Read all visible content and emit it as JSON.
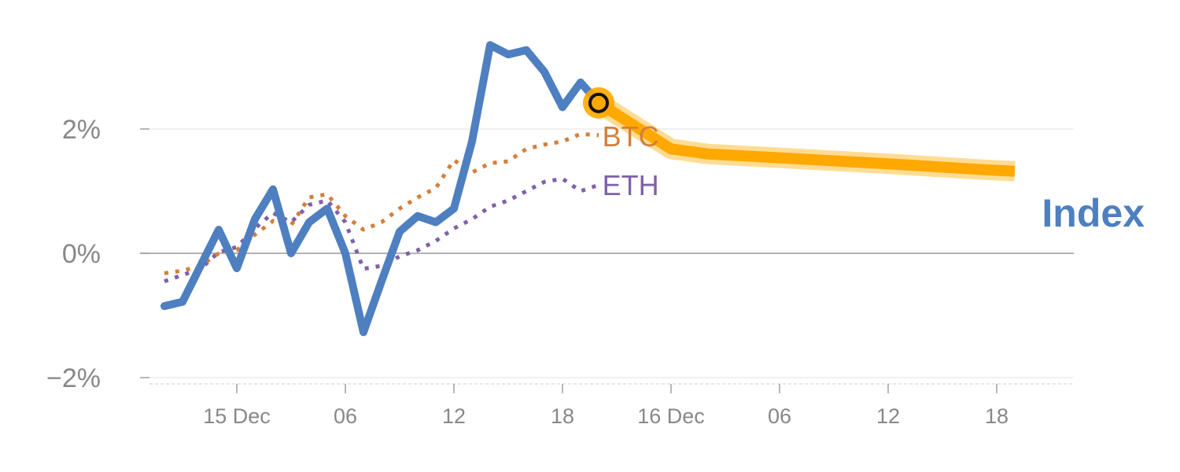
{
  "chart_data": {
    "type": "line",
    "title": "",
    "xlabel": "",
    "ylabel": "",
    "ylim": [
      -2,
      4
    ],
    "y_ticks": [
      {
        "value": -2,
        "label": "−2%"
      },
      {
        "value": 0,
        "label": "0%"
      },
      {
        "value": 2,
        "label": "2%"
      }
    ],
    "x_ticks": [
      {
        "x": 4,
        "label": "15 Dec"
      },
      {
        "x": 10,
        "label": "06"
      },
      {
        "x": 16,
        "label": "12"
      },
      {
        "x": 22,
        "label": "18"
      },
      {
        "x": 28,
        "label": "16 Dec"
      },
      {
        "x": 34,
        "label": "06"
      },
      {
        "x": 40,
        "label": "12"
      },
      {
        "x": 46,
        "label": "18"
      }
    ],
    "grid": true,
    "zero_line": true,
    "colors": {
      "index": "#4e7fc0",
      "btc": "#d47f3a",
      "eth": "#8060a8",
      "forecast": "#ffa800",
      "forecast_halo": "#ffd070",
      "grid": "#e6e6e6",
      "zero": "#999999"
    },
    "series": [
      {
        "name": "Index",
        "style": "solid",
        "x": [
          0,
          1,
          2,
          3,
          4,
          5,
          6,
          7,
          8,
          9,
          10,
          11,
          12,
          13,
          14,
          15,
          16,
          17,
          18,
          19,
          20,
          21,
          22,
          23,
          24
        ],
        "values": [
          -0.85,
          -0.78,
          -0.2,
          0.38,
          -0.24,
          0.55,
          1.03,
          0.0,
          0.5,
          0.72,
          0.0,
          -1.27,
          -0.45,
          0.35,
          0.6,
          0.5,
          0.72,
          1.8,
          3.35,
          3.2,
          3.27,
          2.92,
          2.35,
          2.75,
          2.42
        ]
      },
      {
        "name": "BTC",
        "style": "dotted",
        "x": [
          0,
          1,
          2,
          3,
          4,
          5,
          6,
          7,
          8,
          9,
          10,
          11,
          12,
          13,
          14,
          15,
          16,
          17,
          18,
          19,
          20,
          21,
          22,
          23,
          24
        ],
        "values": [
          -0.32,
          -0.28,
          -0.2,
          0.0,
          0.05,
          0.3,
          0.52,
          0.45,
          0.9,
          0.95,
          0.6,
          0.38,
          0.5,
          0.72,
          0.9,
          1.05,
          1.5,
          1.3,
          1.45,
          1.48,
          1.68,
          1.75,
          1.8,
          1.92,
          1.9
        ]
      },
      {
        "name": "ETH",
        "style": "dotted",
        "x": [
          0,
          1,
          2,
          3,
          4,
          5,
          6,
          7,
          8,
          9,
          10,
          11,
          12,
          13,
          14,
          15,
          16,
          17,
          18,
          19,
          20,
          21,
          22,
          23,
          24
        ],
        "values": [
          -0.45,
          -0.35,
          -0.25,
          0.02,
          0.1,
          0.4,
          0.65,
          0.5,
          0.78,
          0.85,
          0.5,
          -0.25,
          -0.2,
          -0.05,
          0.05,
          0.2,
          0.4,
          0.55,
          0.75,
          0.85,
          1.0,
          1.15,
          1.2,
          1.0,
          1.1
        ]
      }
    ],
    "forecast": {
      "x": [
        24,
        26,
        28,
        30,
        35,
        40,
        45,
        47
      ],
      "values": [
        2.42,
        2.05,
        1.68,
        1.6,
        1.52,
        1.44,
        1.35,
        1.32
      ]
    },
    "highlight_point": {
      "x": 24,
      "value": 2.42
    },
    "labels": {
      "btc": "BTC",
      "eth": "ETH",
      "index": "Index"
    }
  }
}
